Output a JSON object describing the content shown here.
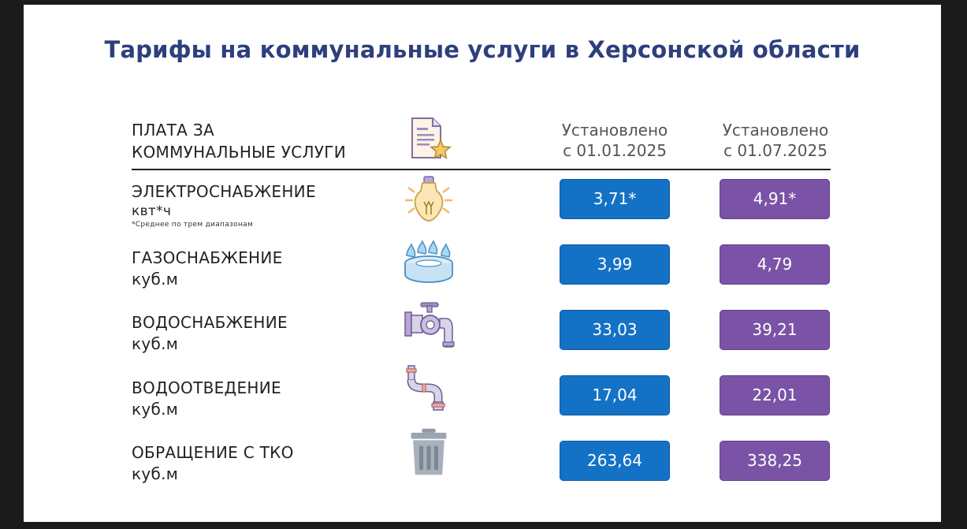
{
  "title": "Тарифы на коммунальные услуги в Херсонской области",
  "header": {
    "label_line1": "ПЛАТА ЗА",
    "label_line2": "КОММУНАЛЬНЫЕ УСЛУГИ",
    "col1_line1": "Установлено",
    "col1_line2": "с 01.01.2025",
    "col2_line1": "Установлено",
    "col2_line2": "с 01.07.2025",
    "icon": "document-star-icon"
  },
  "rows": [
    {
      "name": "ЭЛЕКТРОСНАБЖЕНИЕ",
      "unit": "квт*ч",
      "note": "*Среднее по трем диапазонам",
      "icon": "lightbulb-icon",
      "v1": "3,71*",
      "v2": "4,91*"
    },
    {
      "name": "ГАЗОСНАБЖЕНИЕ",
      "unit": "куб.м",
      "icon": "gas-burner-icon",
      "v1": "3,99",
      "v2": "4,79"
    },
    {
      "name": "ВОДОСНАБЖЕНИЕ",
      "unit": "куб.м",
      "icon": "water-tap-icon",
      "v1": "33,03",
      "v2": "39,21"
    },
    {
      "name": "ВОДООТВЕДЕНИЕ",
      "unit": "куб.м",
      "icon": "drain-pipe-icon",
      "v1": "17,04",
      "v2": "22,01"
    },
    {
      "name": "ОБРАЩЕНИЕ С ТКО",
      "unit": "куб.м",
      "icon": "trash-bin-icon",
      "v1": "263,64",
      "v2": "338,25"
    }
  ],
  "colors": {
    "col1": "#1472c6",
    "col2": "#7a53a6",
    "title": "#2d3f7c"
  }
}
